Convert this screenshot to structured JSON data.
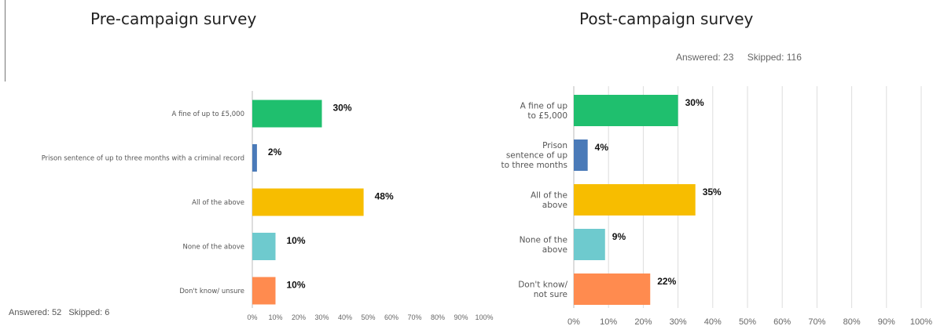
{
  "chart_data": [
    {
      "type": "bar",
      "orientation": "horizontal",
      "title": "Pre-campaign survey",
      "categories": [
        "A fine of up to £5,000",
        "Prison sentence of up to three months with a criminal record",
        "All of the above",
        "None of the above",
        "Don't know/ unsure"
      ],
      "category_lines": [
        [
          "A fine of up to £5,000"
        ],
        [
          "Prison sentence of up to three months with a criminal record"
        ],
        [
          "All of the above"
        ],
        [
          "None of the above"
        ],
        [
          "Don't know/ unsure"
        ]
      ],
      "values": [
        30,
        2,
        48,
        10,
        10
      ],
      "value_labels": [
        "30%",
        "2%",
        "48%",
        "10%",
        "10%"
      ],
      "colors": [
        "#1fbf6e",
        "#4a7ab8",
        "#f7bd00",
        "#6ecace",
        "#ff8b4f"
      ],
      "xlim": [
        0,
        100
      ],
      "x_ticks": [
        "0%",
        "10%",
        "20%",
        "30%",
        "40%",
        "50%",
        "60%",
        "70%",
        "80%",
        "90%",
        "100%"
      ],
      "grid": false,
      "answered": "Answered: 52",
      "skipped": "Skipped: 6"
    },
    {
      "type": "bar",
      "orientation": "horizontal",
      "title": "Post-campaign survey",
      "categories": [
        "A fine of up to £5,000",
        "Prison sentence of up to three months",
        "All of the above",
        "None of the above",
        "Don't know/ not sure"
      ],
      "category_lines": [
        [
          "A fine of up",
          "to £5,000"
        ],
        [
          "Prison",
          "sentence of up",
          "to three months"
        ],
        [
          "All of the",
          "above"
        ],
        [
          "None of the",
          "above"
        ],
        [
          "Don't know/",
          "not sure"
        ]
      ],
      "values": [
        30,
        4,
        35,
        9,
        22
      ],
      "value_labels": [
        "30%",
        "4%",
        "35%",
        "9%",
        "22%"
      ],
      "colors": [
        "#1fbf6e",
        "#4a7ab8",
        "#f7bd00",
        "#6ecace",
        "#ff8b4f"
      ],
      "xlim": [
        0,
        100
      ],
      "x_ticks": [
        "0%",
        "10%",
        "20%",
        "30%",
        "40%",
        "50%",
        "60%",
        "70%",
        "80%",
        "90%",
        "100%"
      ],
      "grid": true,
      "answered": "Answered: 23",
      "skipped": "Skipped: 116"
    }
  ]
}
